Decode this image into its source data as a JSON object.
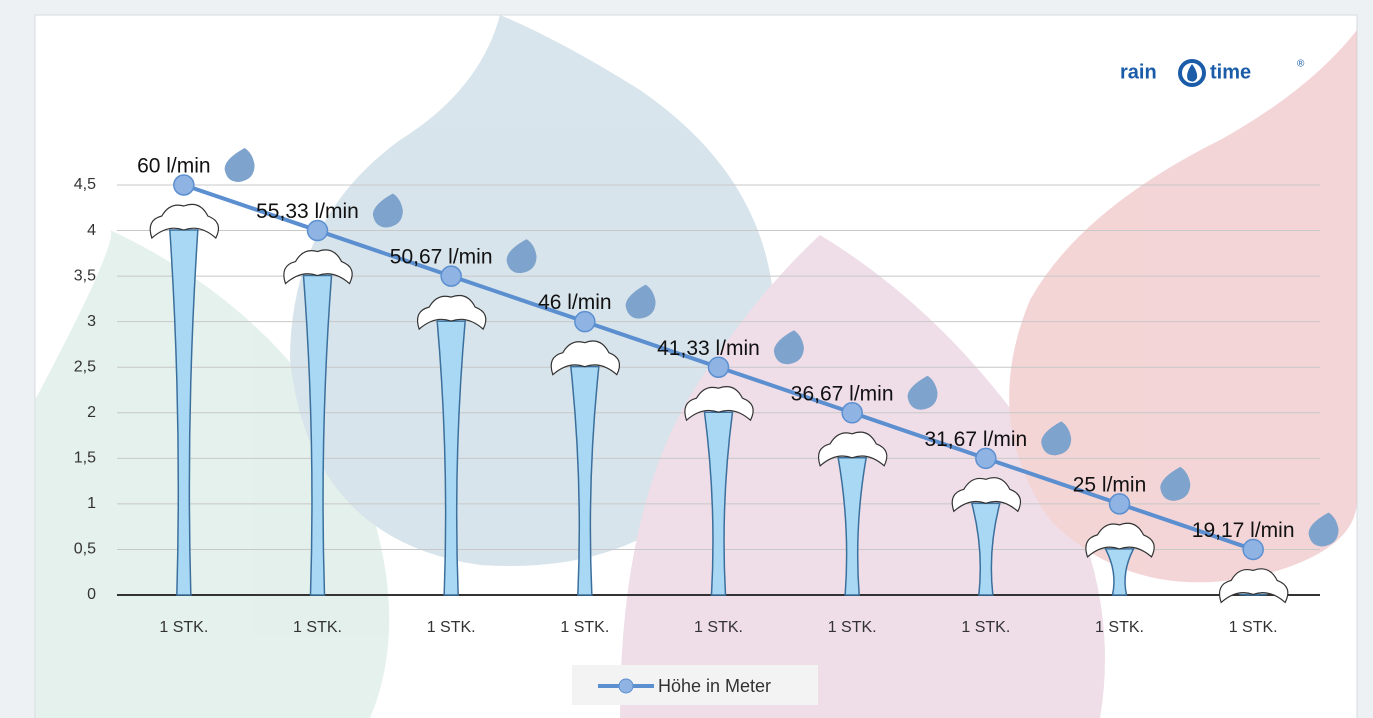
{
  "chart_data": {
    "type": "line",
    "logo": {
      "left": "rain",
      "right": "time",
      "mark": "®"
    },
    "categories": [
      "1 STK.",
      "1 STK.",
      "1 STK.",
      "1 STK.",
      "1 STK.",
      "1 STK.",
      "1 STK.",
      "1 STK.",
      "1 STK."
    ],
    "series": [
      {
        "name": "Höhe in Meter",
        "color": "#5b8fd0",
        "values": [
          4.5,
          4,
          3.5,
          3,
          2.5,
          2,
          1.5,
          1,
          0.5
        ]
      }
    ],
    "annotations": [
      "60 l/min",
      "55,33 l/min",
      "50,67 l/min",
      "46 l/min",
      "41,33 l/min",
      "36,67 l/min",
      "31,67 l/min",
      "25 l/min",
      "19,17 l/min"
    ],
    "ylim": [
      0,
      4.5
    ],
    "yticks": [
      0,
      {
        "value": 0.5,
        "label": "0,5"
      },
      1,
      {
        "value": 1.5,
        "label": "1,5"
      },
      2,
      {
        "value": 2.5,
        "label": "2,5"
      },
      3,
      {
        "value": 3.5,
        "label": "3,5"
      },
      4,
      {
        "value": 4.5,
        "label": "4,5"
      }
    ],
    "grid": true,
    "legend": "bottom"
  }
}
